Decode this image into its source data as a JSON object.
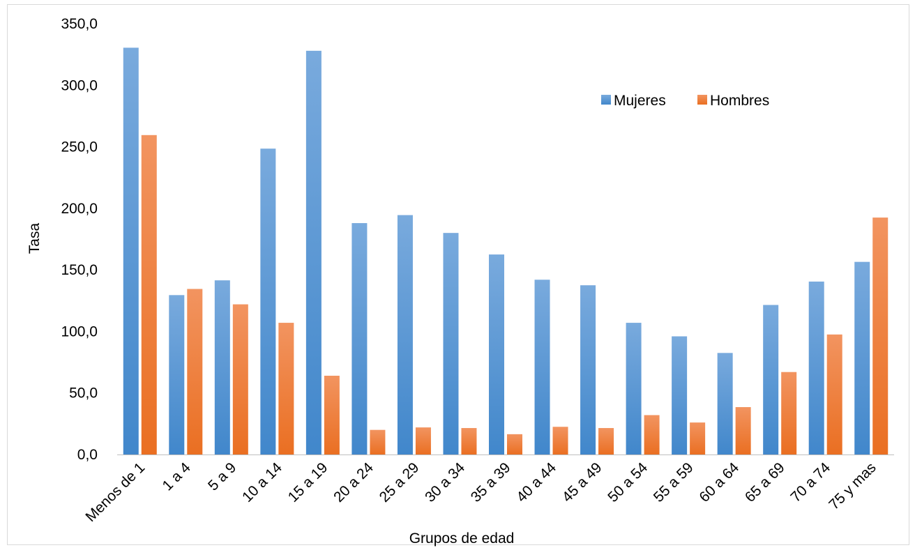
{
  "chart_data": {
    "type": "bar",
    "title": "",
    "xlabel": "Grupos de edad",
    "ylabel": "Tasa",
    "ylim": [
      0,
      350
    ],
    "yticks": [
      "0,0",
      "50,0",
      "100,0",
      "150,0",
      "200,0",
      "250,0",
      "300,0",
      "350,0"
    ],
    "grid": false,
    "legend_position": "top-right",
    "categories": [
      "Menos de 1",
      "1 a 4",
      "5 a 9",
      "10 a 14",
      "15 a 19",
      "20 a 24",
      "25 a 29",
      "30 a 34",
      "35 a 39",
      "40 a 44",
      "45 a 49",
      "50 a 54",
      "55 a 59",
      "60 a 64",
      "65 a 69",
      "70 a 74",
      "75 y mas"
    ],
    "series": [
      {
        "name": "Mujeres",
        "color": "#5b9bd5",
        "values": [
          330.5,
          129.5,
          141.5,
          248.5,
          328.0,
          188.0,
          194.5,
          180.0,
          162.5,
          142.0,
          137.5,
          107.0,
          96.0,
          82.5,
          121.5,
          140.5,
          156.5
        ]
      },
      {
        "name": "Hombres",
        "color": "#ed7d31",
        "values": [
          259.5,
          134.5,
          122.0,
          107.0,
          64.0,
          20.0,
          22.0,
          21.5,
          16.5,
          22.5,
          21.5,
          32.0,
          26.0,
          38.5,
          67.0,
          97.5,
          192.5
        ]
      }
    ]
  }
}
